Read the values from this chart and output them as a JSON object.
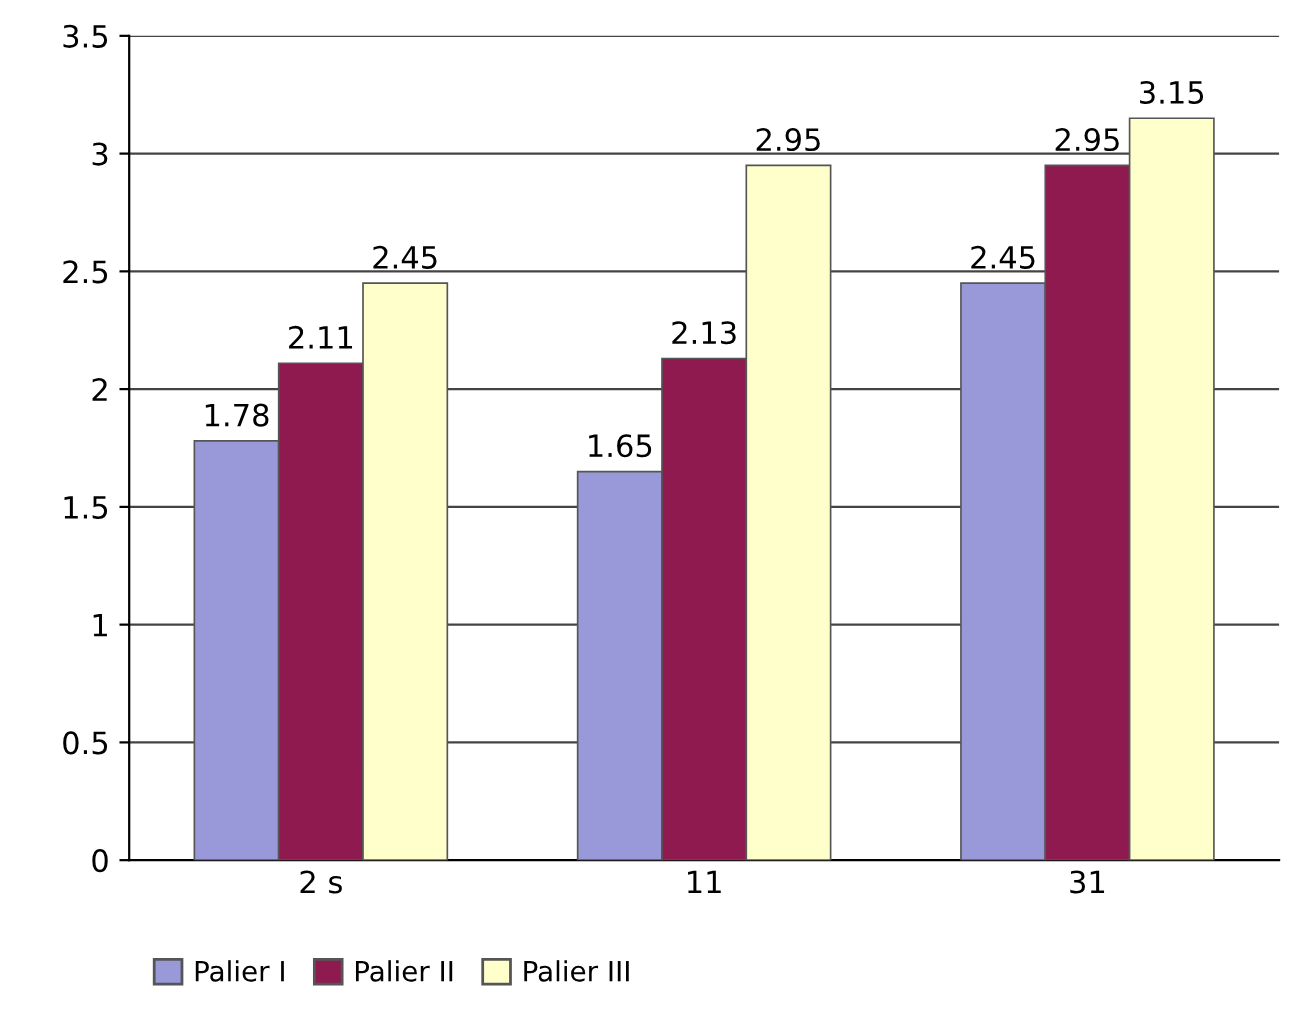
{
  "chart_data": {
    "type": "bar",
    "categories": [
      "2 s",
      "11",
      "31"
    ],
    "series": [
      {
        "name": "Palier I",
        "color": "#9999d9",
        "values": [
          1.78,
          1.65,
          2.45
        ]
      },
      {
        "name": "Palier II",
        "color": "#8e1a50",
        "values": [
          2.11,
          2.13,
          2.95
        ]
      },
      {
        "name": "Palier III",
        "color": "#ffffcc",
        "values": [
          2.45,
          2.95,
          3.15
        ]
      }
    ],
    "ylim": [
      0,
      3.5
    ],
    "yticks": [
      0,
      0.5,
      1,
      1.5,
      2,
      2.5,
      3,
      3.5
    ],
    "grid": "y",
    "legend": "bottom left",
    "data_labels": true
  }
}
